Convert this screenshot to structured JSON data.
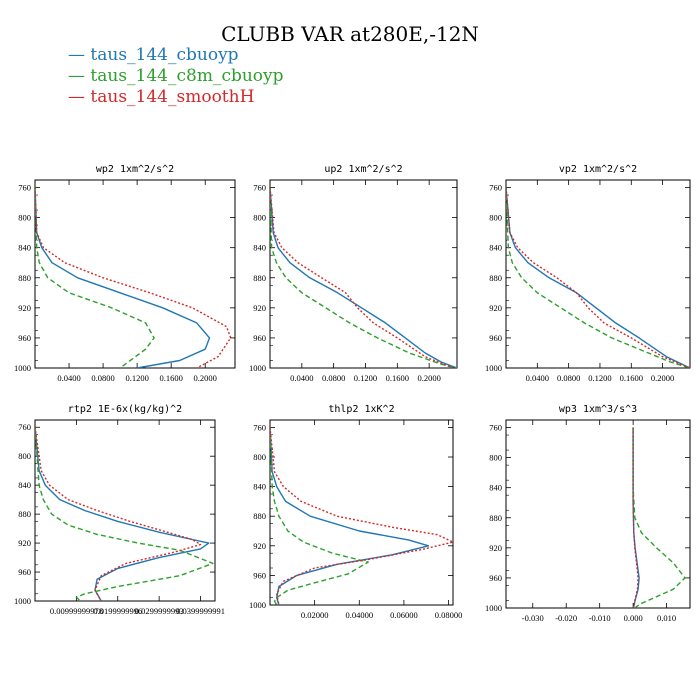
{
  "title": "CLUBB VAR at280E,-12N",
  "legend": [
    {
      "label": "taus_144_cbuoyp",
      "color": "#1f77b4",
      "dash": "solid"
    },
    {
      "label": "taus_144_c8m_cbuoyp",
      "color": "#2ca02c",
      "dash": "dashed"
    },
    {
      "label": "taus_144_smoothH",
      "color": "#d62728",
      "dash": "dotted"
    }
  ],
  "chart_data": [
    {
      "type": "line",
      "title": "wp2  1xm^2/s^2",
      "xlim": [
        0,
        0.235
      ],
      "ylim": [
        1000,
        750
      ],
      "xticks": [
        0.04,
        0.08,
        0.12,
        0.16,
        0.2
      ],
      "xtick_labels": [
        "0.0400",
        "0.0800",
        "0.1200",
        "0.1600",
        "0.2000"
      ],
      "yticks": [
        760,
        800,
        840,
        880,
        920,
        960,
        1000
      ],
      "ytick_labels": [
        "760",
        "800",
        "840",
        "880",
        "920",
        "960",
        "1000"
      ],
      "series": [
        {
          "name": "taus_144_cbuoyp",
          "x": [
            0,
            0.002,
            0.008,
            0.02,
            0.05,
            0.1,
            0.15,
            0.19,
            0.205,
            0.2,
            0.17,
            0.12
          ],
          "y": [
            760,
            820,
            840,
            860,
            880,
            900,
            920,
            940,
            960,
            975,
            990,
            1000
          ]
        },
        {
          "name": "taus_144_c8m_cbuoyp",
          "x": [
            0,
            0.002,
            0.005,
            0.015,
            0.04,
            0.09,
            0.13,
            0.14,
            0.13,
            0.1
          ],
          "y": [
            760,
            840,
            860,
            880,
            900,
            920,
            940,
            960,
            975,
            1000
          ]
        },
        {
          "name": "taus_144_smoothH",
          "x": [
            0,
            0.002,
            0.01,
            0.035,
            0.08,
            0.135,
            0.185,
            0.225,
            0.23,
            0.215,
            0.19
          ],
          "y": [
            760,
            820,
            840,
            860,
            880,
            900,
            920,
            945,
            960,
            985,
            1000
          ]
        }
      ]
    },
    {
      "type": "line",
      "title": "up2  1xm^2/s^2",
      "xlim": [
        0,
        0.235
      ],
      "ylim": [
        1000,
        750
      ],
      "xticks": [
        0.04,
        0.08,
        0.12,
        0.16,
        0.2
      ],
      "xtick_labels": [
        "0.0400",
        "0.0800",
        "0.1200",
        "0.1600",
        "0.2000"
      ],
      "yticks": [
        760,
        800,
        840,
        880,
        920,
        960,
        1000
      ],
      "ytick_labels": [
        "760",
        "800",
        "840",
        "880",
        "920",
        "960",
        "1000"
      ],
      "series": [
        {
          "name": "taus_144_cbuoyp",
          "x": [
            0,
            0.004,
            0.01,
            0.025,
            0.05,
            0.085,
            0.115,
            0.145,
            0.17,
            0.195,
            0.215,
            0.235
          ],
          "y": [
            760,
            820,
            840,
            860,
            880,
            900,
            920,
            940,
            960,
            980,
            992,
            1000
          ]
        },
        {
          "name": "taus_144_c8m_cbuoyp",
          "x": [
            0,
            0.002,
            0.008,
            0.02,
            0.04,
            0.07,
            0.1,
            0.135,
            0.175,
            0.215,
            0.235
          ],
          "y": [
            760,
            840,
            860,
            880,
            900,
            920,
            940,
            960,
            980,
            995,
            1000
          ]
        },
        {
          "name": "taus_144_smoothH",
          "x": [
            0,
            0.005,
            0.015,
            0.035,
            0.065,
            0.095,
            0.11,
            0.13,
            0.16,
            0.195,
            0.23
          ],
          "y": [
            760,
            820,
            840,
            860,
            880,
            900,
            920,
            940,
            960,
            985,
            1000
          ]
        }
      ]
    },
    {
      "type": "line",
      "title": "vp2  1xm^2/s^2",
      "xlim": [
        0,
        0.235
      ],
      "ylim": [
        1000,
        750
      ],
      "xticks": [
        0.04,
        0.08,
        0.12,
        0.16,
        0.2
      ],
      "xtick_labels": [
        "0.0400",
        "0.0800",
        "0.1200",
        "0.1600",
        "0.2000"
      ],
      "yticks": [
        760,
        800,
        840,
        880,
        920,
        960,
        1000
      ],
      "ytick_labels": [
        "760",
        "800",
        "840",
        "880",
        "920",
        "960",
        "1000"
      ],
      "series": [
        {
          "name": "taus_144_cbuoyp",
          "x": [
            0,
            0.005,
            0.012,
            0.028,
            0.055,
            0.09,
            0.115,
            0.14,
            0.17,
            0.205,
            0.235
          ],
          "y": [
            760,
            820,
            840,
            860,
            880,
            900,
            920,
            940,
            960,
            985,
            1000
          ]
        },
        {
          "name": "taus_144_c8m_cbuoyp",
          "x": [
            0,
            0.003,
            0.008,
            0.02,
            0.04,
            0.07,
            0.1,
            0.135,
            0.17,
            0.21,
            0.235
          ],
          "y": [
            760,
            840,
            860,
            880,
            900,
            920,
            940,
            960,
            975,
            992,
            1000
          ]
        },
        {
          "name": "taus_144_smoothH",
          "x": [
            0,
            0.005,
            0.015,
            0.035,
            0.065,
            0.09,
            0.105,
            0.125,
            0.16,
            0.2,
            0.235
          ],
          "y": [
            760,
            820,
            840,
            860,
            880,
            900,
            920,
            940,
            960,
            985,
            1000
          ]
        }
      ]
    },
    {
      "type": "line",
      "title": "rtp2  1E-6x(kg/kg)^2",
      "xlim": [
        0,
        0.0435
      ],
      "ylim": [
        1000,
        750
      ],
      "xticks": [
        0.01,
        0.02,
        0.03,
        0.04
      ],
      "xtick_labels": [
        "0.00999999978",
        "0.0199999996",
        "0.0299999993",
        "0.0399999991"
      ],
      "yticks": [
        760,
        800,
        840,
        880,
        920,
        960,
        1000
      ],
      "ytick_labels": [
        "760",
        "800",
        "840",
        "880",
        "920",
        "960",
        "1000"
      ],
      "series": [
        {
          "name": "taus_144_cbuoyp",
          "x": [
            0,
            0.001,
            0.0025,
            0.006,
            0.012,
            0.02,
            0.03,
            0.038,
            0.042,
            0.04,
            0.03,
            0.02,
            0.015,
            0.0145,
            0.016
          ],
          "y": [
            760,
            820,
            840,
            860,
            875,
            890,
            905,
            915,
            920,
            928,
            940,
            955,
            970,
            985,
            1000
          ]
        },
        {
          "name": "taus_144_c8m_cbuoyp",
          "x": [
            0,
            0.001,
            0.002,
            0.004,
            0.008,
            0.015,
            0.025,
            0.035,
            0.043,
            0.035,
            0.02,
            0.012,
            0.01,
            0.011
          ],
          "y": [
            760,
            840,
            860,
            880,
            895,
            908,
            920,
            930,
            948,
            965,
            980,
            990,
            995,
            1000
          ]
        },
        {
          "name": "taus_144_smoothH",
          "x": [
            0,
            0.0015,
            0.0035,
            0.008,
            0.015,
            0.023,
            0.032,
            0.038,
            0.04,
            0.034,
            0.022,
            0.016,
            0.0145,
            0.016
          ],
          "y": [
            760,
            820,
            840,
            860,
            875,
            890,
            905,
            915,
            922,
            932,
            948,
            965,
            985,
            1000
          ]
        }
      ]
    },
    {
      "type": "line",
      "title": "thlp2  1xK^2",
      "xlim": [
        0,
        0.082
      ],
      "ylim": [
        1000,
        750
      ],
      "xticks": [
        0.02,
        0.04,
        0.06,
        0.08
      ],
      "xtick_labels": [
        "0.02000",
        "0.04000",
        "0.06000",
        "0.08000"
      ],
      "yticks": [
        760,
        800,
        840,
        880,
        920,
        960,
        1000
      ],
      "ytick_labels": [
        "760",
        "800",
        "840",
        "880",
        "920",
        "960",
        "1000"
      ],
      "series": [
        {
          "name": "taus_144_cbuoyp",
          "x": [
            0,
            0.001,
            0.003,
            0.007,
            0.018,
            0.04,
            0.062,
            0.071,
            0.055,
            0.03,
            0.012,
            0.004,
            0.003,
            0.004
          ],
          "y": [
            760,
            820,
            840,
            860,
            880,
            900,
            912,
            920,
            932,
            945,
            960,
            975,
            990,
            1000
          ]
        },
        {
          "name": "taus_144_c8m_cbuoyp",
          "x": [
            0,
            0.001,
            0.002,
            0.004,
            0.008,
            0.015,
            0.028,
            0.044,
            0.035,
            0.02,
            0.008,
            0.003,
            0.002,
            0.003
          ],
          "y": [
            760,
            840,
            860,
            880,
            900,
            915,
            930,
            942,
            958,
            970,
            980,
            990,
            995,
            1000
          ]
        },
        {
          "name": "taus_144_smoothH",
          "x": [
            0,
            0.002,
            0.006,
            0.014,
            0.03,
            0.055,
            0.075,
            0.082,
            0.068,
            0.045,
            0.02,
            0.006,
            0.003,
            0.004
          ],
          "y": [
            760,
            820,
            840,
            860,
            880,
            895,
            905,
            915,
            925,
            938,
            950,
            968,
            985,
            1000
          ]
        }
      ]
    },
    {
      "type": "line",
      "title": "wp3  1xm^3/s^3",
      "xlim": [
        -0.038,
        0.017
      ],
      "ylim": [
        1000,
        750
      ],
      "xticks": [
        -0.03,
        -0.02,
        -0.01,
        0.0,
        0.01
      ],
      "xtick_labels": [
        "-0.030",
        "-0.020",
        "-0.010",
        "0.000",
        "0.010"
      ],
      "yticks": [
        760,
        800,
        840,
        880,
        920,
        960,
        1000
      ],
      "ytick_labels": [
        "760",
        "800",
        "840",
        "880",
        "920",
        "960",
        "1000"
      ],
      "series": [
        {
          "name": "taus_144_cbuoyp",
          "x": [
            0,
            0,
            0.0002,
            0.0006,
            0.0012,
            0.0018,
            0.0015,
            0.0006,
            0.0001
          ],
          "y": [
            760,
            860,
            900,
            920,
            940,
            960,
            975,
            990,
            1000
          ]
        },
        {
          "name": "taus_144_c8m_cbuoyp",
          "x": [
            0,
            0,
            0.0005,
            0.0025,
            0.007,
            0.012,
            0.0155,
            0.012,
            0.006,
            0.002,
            0.0005
          ],
          "y": [
            760,
            840,
            880,
            900,
            920,
            940,
            960,
            975,
            987,
            995,
            1000
          ]
        },
        {
          "name": "taus_144_smoothH",
          "x": [
            0,
            0,
            0.0002,
            0.0005,
            0.001,
            0.0015,
            0.0013,
            0.0005,
            0.0001
          ],
          "y": [
            760,
            860,
            900,
            920,
            940,
            960,
            975,
            990,
            1000
          ]
        }
      ]
    }
  ]
}
